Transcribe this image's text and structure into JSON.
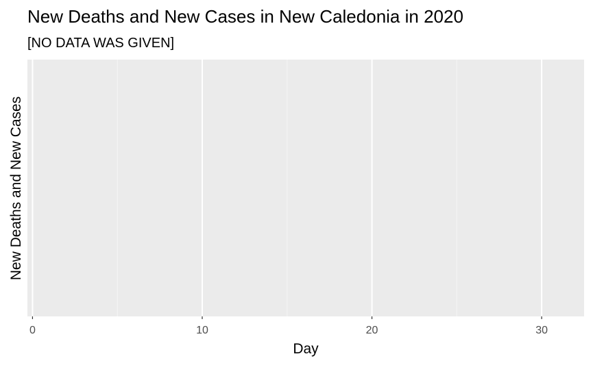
{
  "chart_data": {
    "type": "line",
    "title": "New Deaths and New Cases in New Caledonia in 2020",
    "subtitle": "[NO DATA WAS GIVEN]",
    "xlabel": "Day",
    "ylabel": "New Deaths and New Cases",
    "xlim": [
      -0.3,
      32.5
    ],
    "x_ticks": [
      0,
      10,
      20,
      30
    ],
    "x_tick_labels": [
      "0",
      "10",
      "20",
      "30"
    ],
    "x_minor_ticks": [
      5,
      15,
      25
    ],
    "y_ticks": [],
    "series": [],
    "grid": true,
    "legend": "none",
    "colors": {
      "panel_background": "#ebebeb",
      "grid_major": "#ffffff",
      "grid_minor": "#f5f5f5",
      "tick_label": "#4d4d4d",
      "tick_mark": "#333333"
    }
  }
}
